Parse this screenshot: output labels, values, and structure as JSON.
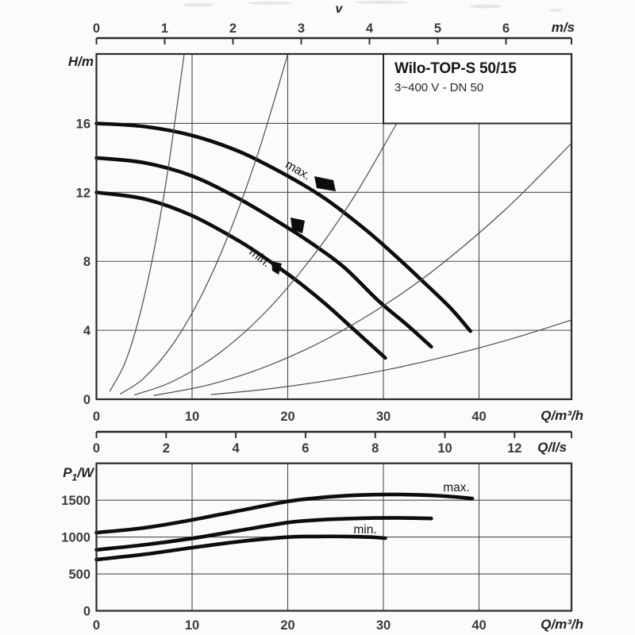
{
  "colors": {
    "paper": "#fcfbf9",
    "box_fill": "#fdfdfc",
    "ink": "#141412",
    "curve": "#0d0d0b",
    "grid": "#4d4d4b",
    "border": "#2a2a28",
    "tick_text": "#3b3b39"
  },
  "title_box": {
    "title": "Wilo-TOP-S 50/15",
    "subtitle": "3~400 V - DN 50"
  },
  "rulers": {
    "velocity": {
      "label": "v",
      "unit": "m/s",
      "ticks": [
        0,
        1,
        2,
        3,
        4,
        5,
        6
      ]
    },
    "liters": {
      "unit": "Q/l/s",
      "ticks": [
        0,
        2,
        4,
        6,
        8,
        10,
        12
      ]
    }
  },
  "chart_data": [
    {
      "type": "line",
      "id": "head_chart",
      "title": "Pump head vs. flow",
      "xlabel": "Q/m³/h",
      "ylabel": "H/m",
      "xlim": [
        0,
        49.7
      ],
      "ylim": [
        0,
        20
      ],
      "xticks": [
        0,
        10,
        20,
        30,
        40
      ],
      "yticks": [
        0,
        4,
        8,
        12,
        16
      ],
      "grid": "on",
      "series": [
        {
          "name": "max",
          "style": "thick",
          "points": [
            [
              0,
              16
            ],
            [
              5,
              15.82
            ],
            [
              10,
              15.3
            ],
            [
              15,
              14.35
            ],
            [
              20,
              12.95
            ],
            [
              24,
              11.6
            ],
            [
              28,
              9.9
            ],
            [
              31,
              8.45
            ],
            [
              34,
              6.9
            ],
            [
              37,
              5.3
            ],
            [
              39.1,
              3.95
            ]
          ]
        },
        {
          "name": "mid",
          "style": "thick",
          "points": [
            [
              0,
              14
            ],
            [
              5,
              13.72
            ],
            [
              10,
              12.95
            ],
            [
              15,
              11.6
            ],
            [
              20,
              9.95
            ],
            [
              23,
              8.85
            ],
            [
              26,
              7.6
            ],
            [
              29.5,
              5.7
            ],
            [
              32.5,
              4.3
            ],
            [
              35,
              3.05
            ]
          ]
        },
        {
          "name": "min",
          "style": "thick",
          "points": [
            [
              0,
              12
            ],
            [
              5,
              11.62
            ],
            [
              10,
              10.65
            ],
            [
              15,
              9.15
            ],
            [
              18,
              8.05
            ],
            [
              21,
              6.85
            ],
            [
              24,
              5.5
            ],
            [
              27,
              4.0
            ],
            [
              30.2,
              2.4
            ]
          ]
        },
        {
          "name": "velocity-curve-1",
          "style": "thin",
          "points": [
            [
              1.4,
              0.47
            ],
            [
              3,
              2.14
            ],
            [
              4.5,
              4.82
            ],
            [
              6,
              8.57
            ],
            [
              7.5,
              13.39
            ],
            [
              9.17,
              20
            ]
          ]
        },
        {
          "name": "velocity-curve-2",
          "style": "thin",
          "points": [
            [
              2.5,
              0.31
            ],
            [
              5,
              1.25
            ],
            [
              8,
              3.2
            ],
            [
              11,
              6.05
            ],
            [
              14,
              9.8
            ],
            [
              17,
              14.45
            ],
            [
              20,
              20
            ]
          ]
        },
        {
          "name": "velocity-curve-3",
          "style": "thin",
          "points": [
            [
              4,
              0.26
            ],
            [
              8,
              1.04
            ],
            [
              13,
              2.74
            ],
            [
              18,
              5.25
            ],
            [
              23,
              8.57
            ],
            [
              27,
              11.81
            ],
            [
              31.4,
              16
            ]
          ]
        },
        {
          "name": "velocity-curve-4",
          "style": "thin",
          "points": [
            [
              6,
              0.22
            ],
            [
              12,
              0.87
            ],
            [
              18,
              1.95
            ],
            [
              24,
              3.47
            ],
            [
              30,
              5.42
            ],
            [
              36,
              7.8
            ],
            [
              43,
              11.13
            ],
            [
              49.7,
              14.87
            ]
          ]
        },
        {
          "name": "velocity-curve-5",
          "style": "thin",
          "points": [
            [
              12,
              0.27
            ],
            [
              18,
              0.6
            ],
            [
              24,
              1.07
            ],
            [
              30,
              1.67
            ],
            [
              36,
              2.41
            ],
            [
              43,
              3.44
            ],
            [
              49.7,
              4.6
            ]
          ]
        }
      ],
      "annotations": [
        {
          "text": "max.",
          "q": 21.0,
          "h": 13.2,
          "angle": 30
        },
        {
          "text": "min.",
          "q": 17.0,
          "h": 8.2,
          "angle": 38
        }
      ],
      "markers": [
        {
          "name": "max-speed-flag",
          "polygon": [
            [
              396,
              222
            ],
            [
              420,
              227
            ],
            [
              423,
              241
            ],
            [
              399,
              237
            ]
          ]
        },
        {
          "name": "mid-speed-flag",
          "polygon": [
            [
              366,
              274
            ],
            [
              384,
              278
            ],
            [
              381,
              294
            ],
            [
              368,
              289
            ]
          ]
        },
        {
          "name": "min-speed-flag",
          "polygon": [
            [
              342,
              329
            ],
            [
              355,
              332
            ],
            [
              351,
              346
            ],
            [
              343,
              341
            ]
          ]
        }
      ]
    },
    {
      "type": "line",
      "id": "power_chart",
      "title": "Power input vs. flow",
      "xlabel": "Q/m³/h",
      "ylabel": "P1/W",
      "ylabel_parts": {
        "base": "P",
        "sub": "1",
        "rest": "/W"
      },
      "xlim": [
        0,
        49.7
      ],
      "ylim": [
        0,
        2000
      ],
      "xticks": [
        0,
        10,
        20,
        30,
        40
      ],
      "yticks": [
        0,
        500,
        1000,
        1500
      ],
      "grid": "on",
      "series": [
        {
          "name": "max",
          "style": "thick",
          "points": [
            [
              0,
              1060
            ],
            [
              5,
              1125
            ],
            [
              10,
              1232
            ],
            [
              15,
              1360
            ],
            [
              20,
              1483
            ],
            [
              23,
              1530
            ],
            [
              26,
              1560
            ],
            [
              29,
              1575
            ],
            [
              32,
              1577
            ],
            [
              35,
              1565
            ],
            [
              37.5,
              1545
            ],
            [
              39.3,
              1522
            ]
          ]
        },
        {
          "name": "mid",
          "style": "thick",
          "points": [
            [
              0,
              827
            ],
            [
              5,
              895
            ],
            [
              10,
              982
            ],
            [
              15,
              1090
            ],
            [
              20,
              1197
            ],
            [
              23,
              1230
            ],
            [
              26,
              1248
            ],
            [
              29,
              1258
            ],
            [
              31.5,
              1260
            ],
            [
              35,
              1252
            ]
          ]
        },
        {
          "name": "min",
          "style": "thick",
          "points": [
            [
              0,
              694
            ],
            [
              5,
              765
            ],
            [
              10,
              856
            ],
            [
              15,
              940
            ],
            [
              20,
              999
            ],
            [
              23,
              1008
            ],
            [
              26,
              1008
            ],
            [
              28.5,
              1000
            ],
            [
              30.2,
              985
            ]
          ]
        }
      ],
      "annotations": [
        {
          "text": "max.",
          "q": 37.6,
          "p": 1680
        },
        {
          "text": "min.",
          "q": 28.1,
          "p": 1110
        }
      ]
    }
  ]
}
